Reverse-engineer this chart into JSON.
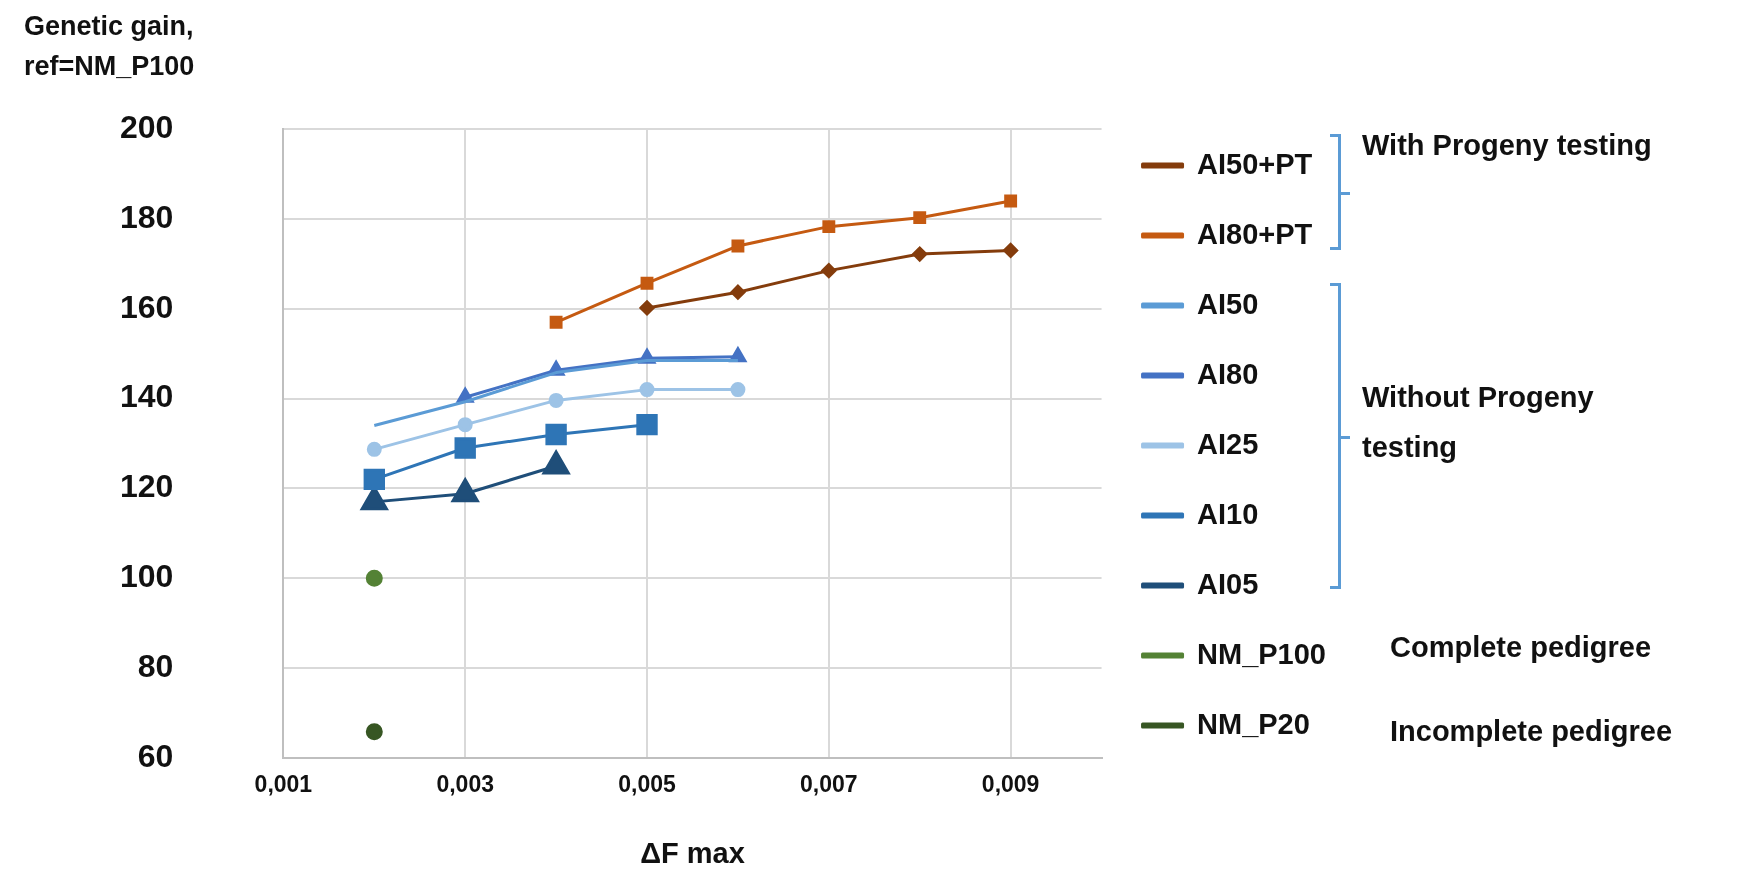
{
  "chart_data": {
    "type": "line",
    "ylabel": "Genetic gain, ref=NM_P100",
    "xlabel": "ΔF max",
    "series": [
      {
        "name": "AI50+PT",
        "color": "#843c0c",
        "marker": "diamond",
        "x": [
          0.005,
          0.006,
          0.007,
          0.008,
          0.009
        ],
        "values": [
          160.2,
          163.7,
          168.5,
          172.2,
          173
        ]
      },
      {
        "name": "AI80+PT",
        "color": "#c55a11",
        "marker": "square",
        "x": [
          0.004,
          0.005,
          0.006,
          0.007,
          0.008,
          0.009
        ],
        "values": [
          157,
          165.7,
          174,
          178.3,
          180.3,
          184
        ]
      },
      {
        "name": "AI50",
        "color": "#5b9bd5",
        "marker": "none",
        "x": [
          0.002,
          0.003,
          0.004,
          0.005,
          0.006
        ],
        "values": [
          134,
          139.3,
          145.8,
          148.5,
          148.5
        ]
      },
      {
        "name": "AI80",
        "color": "#4472c4",
        "marker": "triangle",
        "x": [
          0.003,
          0.004,
          0.005,
          0.006
        ],
        "values": [
          140.3,
          146.3,
          149,
          149.3
        ]
      },
      {
        "name": "AI25",
        "color": "#9dc3e6",
        "marker": "circle",
        "x": [
          0.002,
          0.003,
          0.004,
          0.005,
          0.006
        ],
        "values": [
          128.7,
          134.2,
          139.6,
          142,
          142
        ]
      },
      {
        "name": "AI10",
        "color": "#2e75b6",
        "marker": "square",
        "x": [
          0.002,
          0.003,
          0.004,
          0.005
        ],
        "values": [
          122,
          129,
          132,
          134.2
        ]
      },
      {
        "name": "AI05",
        "color": "#1f4e79",
        "marker": "triangle",
        "x": [
          0.002,
          0.003,
          0.004
        ],
        "values": [
          117,
          118.8,
          125
        ]
      },
      {
        "name": "NM_P100",
        "color": "#548235",
        "marker": "circle",
        "x": [
          0.002
        ],
        "values": [
          100
        ]
      },
      {
        "name": "NM_P20",
        "color": "#375623",
        "marker": "circle",
        "x": [
          0.002
        ],
        "values": [
          65.8
        ]
      }
    ],
    "xlim": [
      0.001,
      0.01
    ],
    "xticks": [
      {
        "value": 0.001,
        "label": "0,001"
      },
      {
        "value": 0.003,
        "label": "0,003"
      },
      {
        "value": 0.005,
        "label": "0,005"
      },
      {
        "value": 0.007,
        "label": "0,007"
      },
      {
        "value": 0.009,
        "label": "0,009"
      }
    ],
    "ylim": [
      60,
      200
    ],
    "yticks": [
      60,
      80,
      100,
      120,
      140,
      160,
      180,
      200
    ],
    "grid": true,
    "legend": "right",
    "line_style": "solid",
    "annotations": [
      "With Progeny testing",
      "Without Progeny testing",
      "Complete pedigree",
      "Incomplete pedigree"
    ]
  }
}
